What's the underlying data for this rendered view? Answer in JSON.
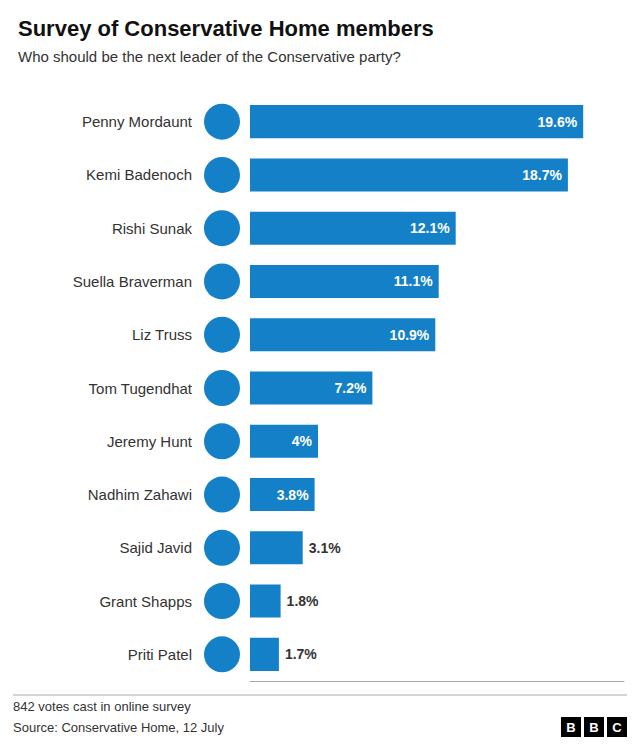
{
  "chart_data": {
    "type": "bar",
    "orientation": "horizontal",
    "title": "Survey of Conservative Home members",
    "subtitle": "Who should be the next leader of the Conservative party?",
    "annotations": [
      "842 votes cast in online survey",
      "Source: Conservative Home, 12 July"
    ],
    "logo": "BBC",
    "categories": [
      "Penny Mordaunt",
      "Kemi Badenoch",
      "Rishi Sunak",
      "Suella Braverman",
      "Liz Truss",
      "Tom Tugendhat",
      "Jeremy Hunt",
      "Nadhim Zahawi",
      "Sajid Javid",
      "Grant Shapps",
      "Priti Patel"
    ],
    "values": [
      19.6,
      18.7,
      12.1,
      11.1,
      10.9,
      7.2,
      4.0,
      3.8,
      3.1,
      1.8,
      1.7
    ],
    "value_labels": [
      "19.6%",
      "18.7%",
      "12.1%",
      "11.1%",
      "10.9%",
      "7.2%",
      "4%",
      "3.8%",
      "3.1%",
      "1.8%",
      "1.7%"
    ],
    "data_labels": true,
    "color": "#1380C8",
    "xlim": [
      0,
      22
    ],
    "xticks": [],
    "tick_labels": "y",
    "grid": false
  }
}
